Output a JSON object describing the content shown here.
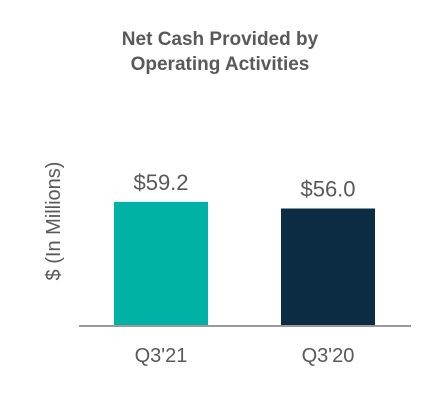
{
  "chart_data": {
    "type": "bar",
    "title_lines": [
      "Net Cash Provided by",
      "Operating Activities"
    ],
    "ylabel": "$ (In Millions)",
    "xlabel": "",
    "categories": [
      "Q3'21",
      "Q3'20"
    ],
    "values": [
      59.2,
      56.0
    ],
    "value_labels": [
      "$59.2",
      "$56.0"
    ],
    "colors": [
      "#00b2a5",
      "#0b2c43"
    ],
    "axis_color": "#9a9a9a",
    "ylim": [
      0,
      70
    ],
    "grid": false,
    "legend": "none"
  }
}
